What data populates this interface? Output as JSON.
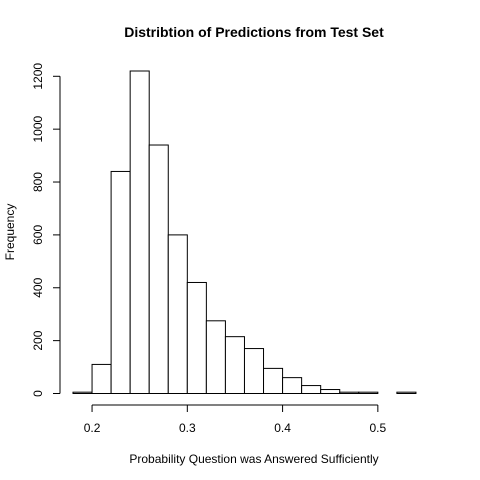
{
  "chart_data": {
    "type": "bar",
    "title": "Distribtion of Predictions from Test Set",
    "xlabel": "Probability Question was Answered Sufficiently",
    "ylabel": "Frequency",
    "bin_width": 0.02,
    "bin_starts": [
      0.18,
      0.2,
      0.22,
      0.24,
      0.26,
      0.28,
      0.3,
      0.32,
      0.34,
      0.36,
      0.38,
      0.4,
      0.42,
      0.44,
      0.46,
      0.48,
      0.5,
      0.52,
      0.54
    ],
    "values": [
      5,
      110,
      840,
      1220,
      940,
      600,
      420,
      275,
      215,
      170,
      95,
      60,
      30,
      15,
      5,
      5,
      0,
      5,
      0
    ],
    "xlim": [
      0.18,
      0.56
    ],
    "ylim": [
      0,
      1220
    ],
    "x_ticks": [
      0.2,
      0.3,
      0.4,
      0.5
    ],
    "x_tick_labels": [
      "0.2",
      "0.3",
      "0.4",
      "0.5"
    ],
    "y_ticks": [
      0,
      200,
      400,
      600,
      800,
      1000,
      1200
    ],
    "y_tick_labels": [
      "0",
      "200",
      "400",
      "600",
      "800",
      "1000",
      "1200"
    ],
    "grid": false,
    "colors": {
      "bar_fill": "#ffffff",
      "bar_stroke": "#000000",
      "axis": "#000000"
    }
  }
}
